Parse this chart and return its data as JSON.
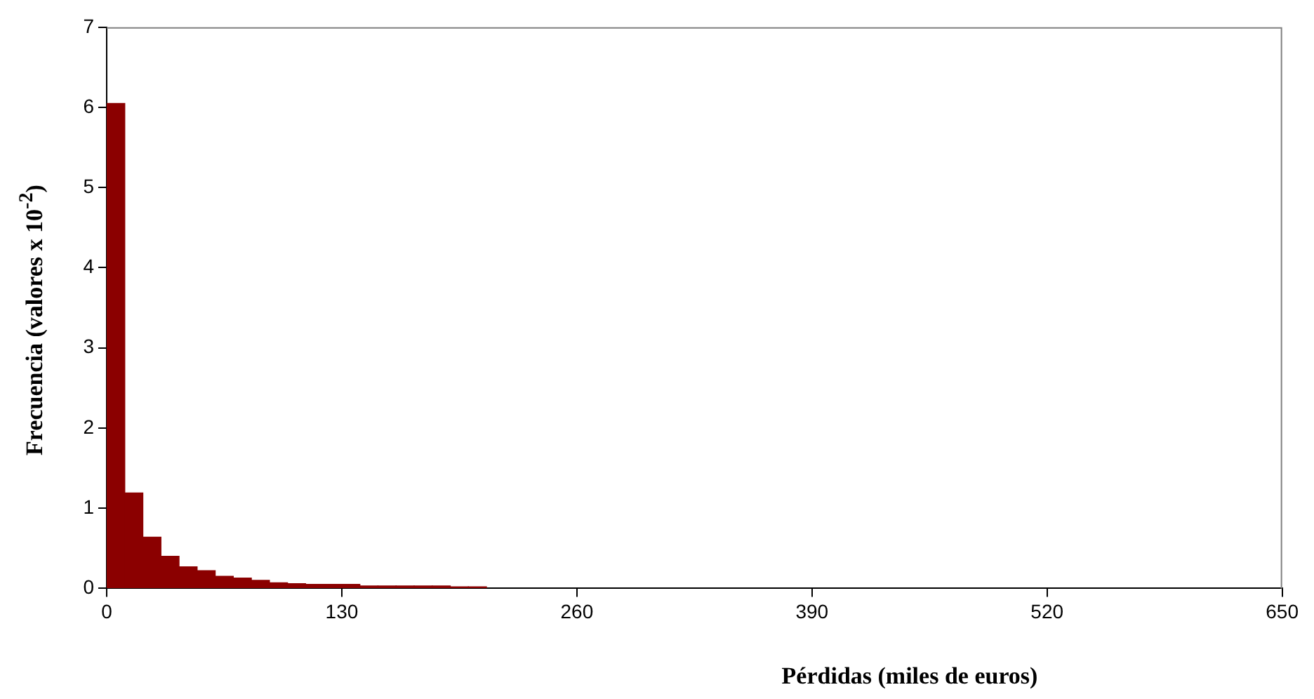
{
  "chart_data": {
    "type": "histogram",
    "xlabel": "Pérdidas (miles de euros)",
    "ylabel": "Frecuencia (valores  x 10$^{-2}$)",
    "bins": [
      0,
      10,
      20,
      30,
      40,
      50,
      60,
      70,
      80,
      90,
      100,
      110,
      120,
      130,
      140,
      150,
      160,
      170,
      180,
      190,
      200,
      210
    ],
    "values": [
      6.05,
      1.19,
      0.64,
      0.4,
      0.27,
      0.22,
      0.15,
      0.13,
      0.1,
      0.07,
      0.06,
      0.05,
      0.05,
      0.05,
      0.03,
      0.03,
      0.03,
      0.03,
      0.03,
      0.02,
      0.02
    ],
    "color": "#8b0000",
    "xlim": [
      0,
      650
    ],
    "xticks": [
      0,
      130,
      260,
      390,
      520,
      650
    ],
    "ylim": [
      0,
      7
    ],
    "yticks": [
      0,
      1,
      2,
      3,
      4,
      5,
      6,
      7
    ],
    "grid": false,
    "legend": false
  }
}
